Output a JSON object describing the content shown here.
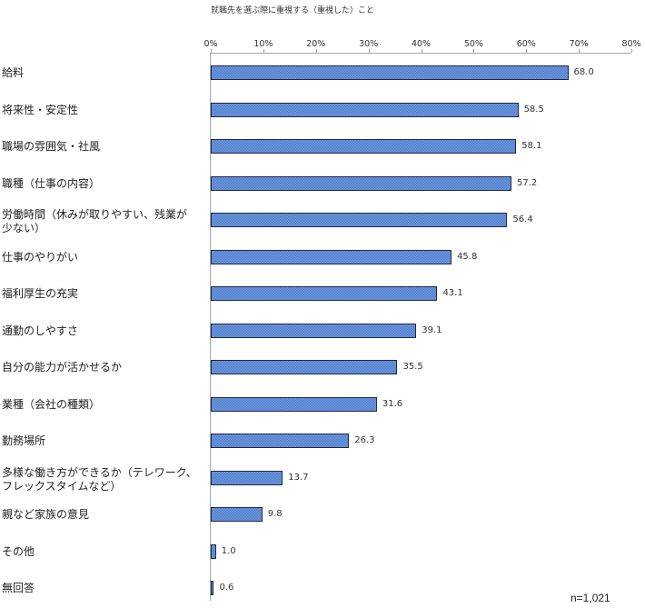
{
  "chart_data": {
    "type": "bar",
    "orientation": "horizontal",
    "title": "就職先を選ぶ際に重視する（重視した）こと",
    "xlabel": "",
    "ylabel": "",
    "xlim": [
      0,
      80
    ],
    "x_ticks": [
      "0%",
      "10%",
      "20%",
      "30%",
      "40%",
      "50%",
      "60%",
      "70%",
      "80%"
    ],
    "axis_position": "top",
    "grid": false,
    "legend": null,
    "categories": [
      "給料",
      "将来性・安定性",
      "職場の雰囲気・社風",
      "職種（仕事の内容）",
      "労働時間（休みが取りやすい、残業が少ない）",
      "仕事のやりがい",
      "福利厚生の充実",
      "通勤のしやすさ",
      "自分の能力が活かせるか",
      "業種（会社の種類）",
      "勤務場所",
      "多様な働き方ができるか（テレワーク、フレックスタイムなど）",
      "親など家族の意見",
      "その他",
      "無回答"
    ],
    "values": [
      68.0,
      58.5,
      58.1,
      57.2,
      56.4,
      45.8,
      43.1,
      39.1,
      35.5,
      31.6,
      26.3,
      13.7,
      9.8,
      1.0,
      0.6
    ],
    "value_labels": [
      "68.0",
      "58.5",
      "58.1",
      "57.2",
      "56.4",
      "45.8",
      "43.1",
      "39.1",
      "35.5",
      "31.6",
      "26.3",
      "13.7",
      "9.8",
      "1.0",
      "0.6"
    ],
    "annotation": "n=1,021",
    "bar_color": "#4f7ecf"
  },
  "labels": {
    "rows": [
      {
        "line1": "給料",
        "line2": ""
      },
      {
        "line1": "将来性・安定性",
        "line2": ""
      },
      {
        "line1": "職場の雰囲気・社風",
        "line2": ""
      },
      {
        "line1": "職種（仕事の内容）",
        "line2": ""
      },
      {
        "line1": "労働時間（休みが取りやすい、残業が",
        "line2": "少ない）"
      },
      {
        "line1": "仕事のやりがい",
        "line2": ""
      },
      {
        "line1": "福利厚生の充実",
        "line2": ""
      },
      {
        "line1": "通勤のしやすさ",
        "line2": ""
      },
      {
        "line1": "自分の能力が活かせるか",
        "line2": ""
      },
      {
        "line1": "業種（会社の種類）",
        "line2": ""
      },
      {
        "line1": "勤務場所",
        "line2": ""
      },
      {
        "line1": "多様な働き方ができるか（テレワーク、",
        "line2": "フレックスタイムなど）"
      },
      {
        "line1": "親など家族の意見",
        "line2": ""
      },
      {
        "line1": "その他",
        "line2": ""
      },
      {
        "line1": "無回答",
        "line2": ""
      }
    ]
  }
}
